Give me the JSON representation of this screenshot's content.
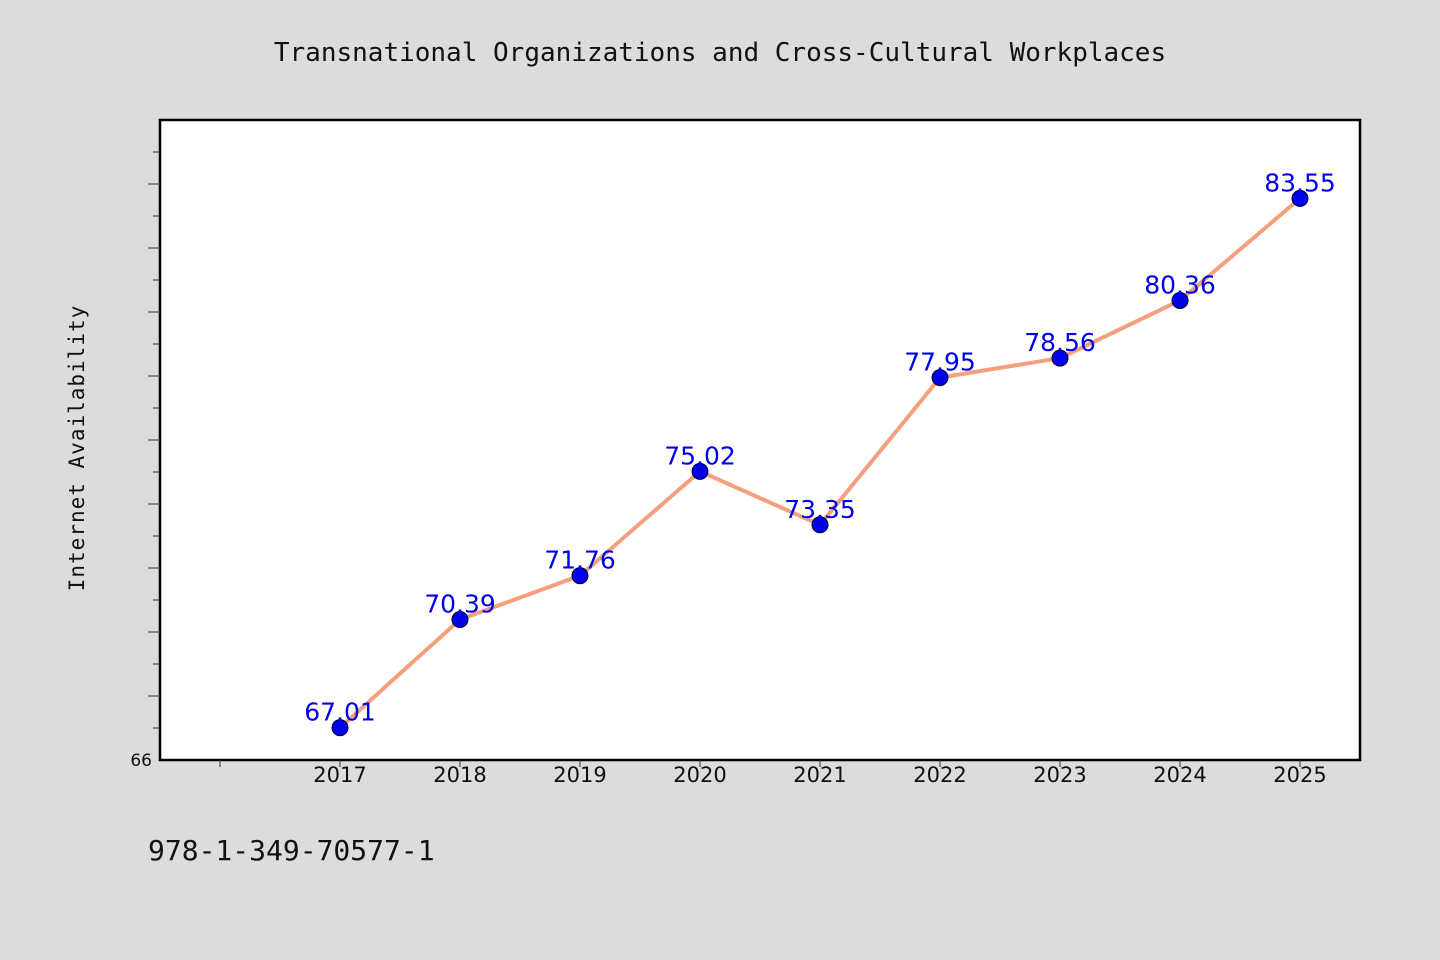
{
  "footnote": "978-1-349-70577-1",
  "colors": {
    "background": "#dcdcdc",
    "plot_area": "#ffffff",
    "line": "#f4a07e",
    "marker": "#0000ee",
    "data_label": "#0000ee"
  },
  "chart_data": {
    "type": "line",
    "title": "Transnational Organizations and Cross-Cultural Workplaces",
    "xlabel": "",
    "ylabel": "Internet Availability",
    "categories": [
      "2017",
      "2018",
      "2019",
      "2020",
      "2021",
      "2022",
      "2023",
      "2024",
      "2025"
    ],
    "series": [
      {
        "values": [
          67.01,
          70.39,
          71.76,
          75.02,
          73.35,
          77.95,
          78.56,
          80.36,
          83.55
        ],
        "labels": [
          "67.01",
          "70.39",
          "71.76",
          "75.02",
          "73.35",
          "77.95",
          "78.56",
          "80.36",
          "83.55"
        ]
      }
    ],
    "ylim": [
      66,
      86
    ],
    "y_tick_labels": [
      "66"
    ],
    "grid": false,
    "legend": "none"
  }
}
